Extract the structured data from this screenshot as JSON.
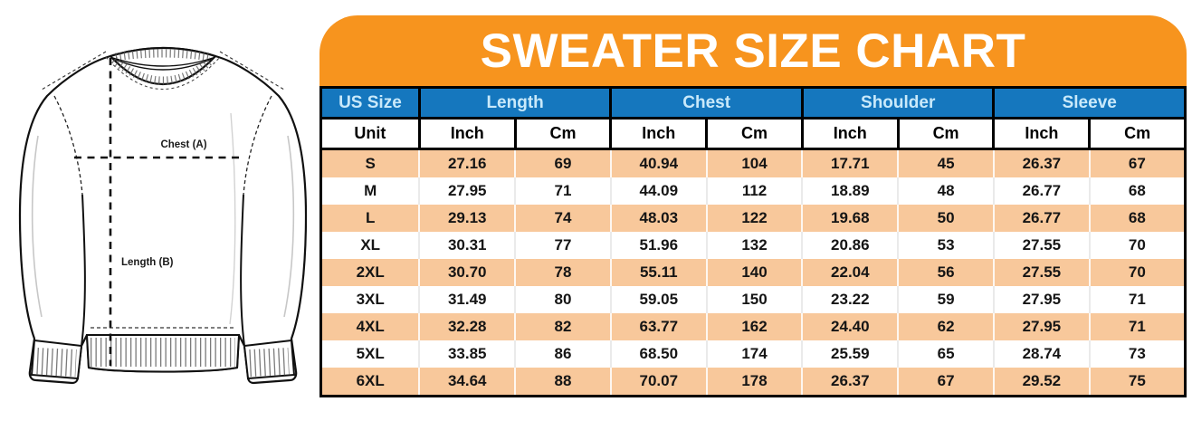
{
  "title": "SWEATER SIZE CHART",
  "diagram": {
    "chest_label": "Chest (A)",
    "length_label": "Length (B)"
  },
  "table": {
    "groups": [
      {
        "label": "US Size",
        "span": 1
      },
      {
        "label": "Length",
        "span": 2
      },
      {
        "label": "Chest",
        "span": 2
      },
      {
        "label": "Shoulder",
        "span": 2
      },
      {
        "label": "Sleeve",
        "span": 2
      }
    ],
    "unit_row": [
      "Unit",
      "Inch",
      "Cm",
      "Inch",
      "Cm",
      "Inch",
      "Cm",
      "Inch",
      "Cm"
    ],
    "rows": [
      [
        "S",
        "27.16",
        "69",
        "40.94",
        "104",
        "17.71",
        "45",
        "26.37",
        "67"
      ],
      [
        "M",
        "27.95",
        "71",
        "44.09",
        "112",
        "18.89",
        "48",
        "26.77",
        "68"
      ],
      [
        "L",
        "29.13",
        "74",
        "48.03",
        "122",
        "19.68",
        "50",
        "26.77",
        "68"
      ],
      [
        "XL",
        "30.31",
        "77",
        "51.96",
        "132",
        "20.86",
        "53",
        "27.55",
        "70"
      ],
      [
        "2XL",
        "30.70",
        "78",
        "55.11",
        "140",
        "22.04",
        "56",
        "27.55",
        "70"
      ],
      [
        "3XL",
        "31.49",
        "80",
        "59.05",
        "150",
        "23.22",
        "59",
        "27.95",
        "71"
      ],
      [
        "4XL",
        "32.28",
        "82",
        "63.77",
        "162",
        "24.40",
        "62",
        "27.95",
        "71"
      ],
      [
        "5XL",
        "33.85",
        "86",
        "68.50",
        "174",
        "25.59",
        "65",
        "28.74",
        "73"
      ],
      [
        "6XL",
        "34.64",
        "88",
        "70.07",
        "178",
        "26.37",
        "67",
        "29.52",
        "75"
      ]
    ]
  },
  "colors": {
    "banner_orange": "#F7941E",
    "header_blue": "#1577BE",
    "header_text_blue": "#C9E9FA",
    "row_peach": "#F8C89B",
    "line_black": "#111111"
  }
}
